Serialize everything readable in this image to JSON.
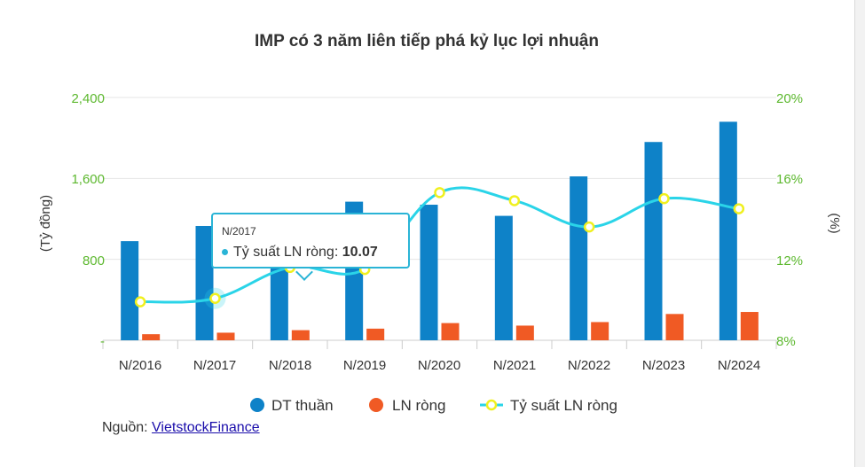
{
  "colors": {
    "revenue": "#0e82c8",
    "net_profit": "#f05a24",
    "margin_line": "#2ad4e8",
    "margin_marker_stroke": "#f0f01e",
    "axis_ticks": "#5cb82e",
    "grid": "#e6e6e6"
  },
  "chart_data": {
    "type": "bar",
    "title": "IMP có 3 năm liên tiếp phá kỷ lục lợi nhuận",
    "categories": [
      "N/2016",
      "N/2017",
      "N/2018",
      "N/2019",
      "N/2020",
      "N/2021",
      "N/2022",
      "N/2023",
      "N/2024"
    ],
    "series": [
      {
        "name": "DT thuần",
        "type": "bar",
        "axis": "left",
        "values": [
          980,
          1130,
          1150,
          1370,
          1340,
          1230,
          1620,
          1960,
          2160
        ]
      },
      {
        "name": "LN ròng",
        "type": "bar",
        "axis": "left",
        "values": [
          60,
          75,
          100,
          115,
          170,
          145,
          180,
          260,
          280
        ]
      },
      {
        "name": "Tỷ suất LN ròng",
        "type": "line",
        "axis": "right",
        "values": [
          9.9,
          10.07,
          11.6,
          11.5,
          15.3,
          14.9,
          13.6,
          15.0,
          14.5
        ]
      }
    ],
    "ylabel": "(Tỷ đồng)",
    "ylabel_right": "(%)",
    "ylim": [
      0,
      2400
    ],
    "ylim_right": [
      8,
      20
    ],
    "yticks_left": [
      "-",
      "800",
      "1,600",
      "2,400"
    ],
    "yticks_right": [
      "8%",
      "12%",
      "16%",
      "20%"
    ],
    "grid": true,
    "legend_position": "bottom"
  },
  "tooltip": {
    "category": "N/2017",
    "label": "Tỷ suất LN ròng: ",
    "value": "10.07"
  },
  "source": {
    "label": "Nguồn: ",
    "link_text": "VietstockFinance"
  }
}
